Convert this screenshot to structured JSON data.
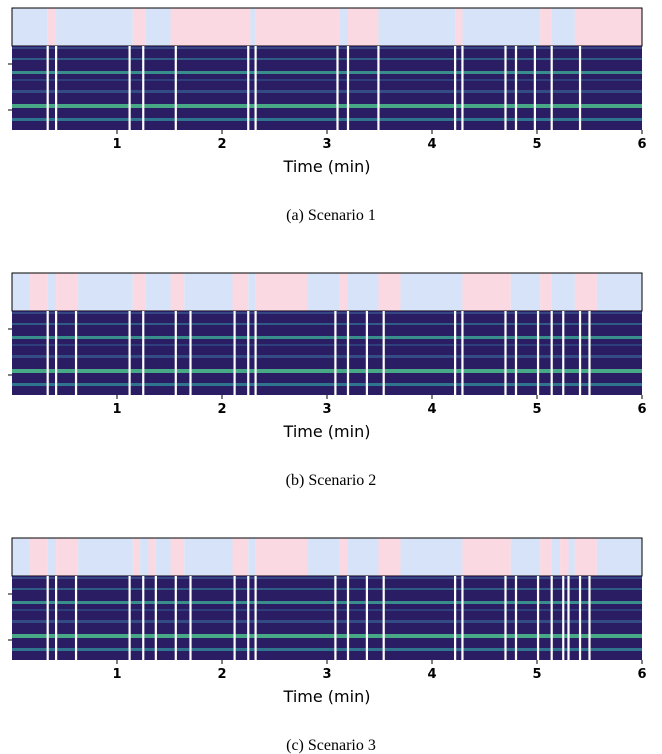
{
  "chart_data": [
    {
      "type": "segments",
      "caption": "(a) Scenario 1",
      "xlabel": "Time (min)",
      "xlim": [
        0,
        6
      ],
      "xticks": [
        1,
        2,
        3,
        4,
        5,
        6
      ],
      "segment_edges": [
        0,
        0.34,
        0.42,
        1.15,
        1.27,
        1.51,
        2.27,
        2.32,
        3.12,
        3.2,
        3.49,
        4.22,
        4.29,
        5.03,
        5.14,
        5.36,
        6
      ],
      "segment_colors": [
        "#d7e3f8",
        "#fbd9e2",
        "#d7e3f8",
        "#fbd9e2",
        "#d7e3f8",
        "#fbd9e2",
        "#d7e3f8",
        "#fbd9e2",
        "#d7e3f8",
        "#fbd9e2",
        "#d7e3f8",
        "#fbd9e2",
        "#d7e3f8",
        "#fbd9e2",
        "#d7e3f8",
        "#fbd9e2"
      ],
      "events": [
        0.34,
        0.42,
        1.12,
        1.25,
        1.56,
        2.25,
        2.32,
        3.1,
        3.2,
        3.49,
        4.22,
        4.29,
        4.7,
        4.8,
        4.98,
        5.14,
        5.41
      ],
      "event_color": "#ffffff"
    },
    {
      "type": "segments",
      "caption": "(b) Scenario 2",
      "xlabel": "Time (min)",
      "xlim": [
        0,
        6
      ],
      "xticks": [
        1,
        2,
        3,
        4,
        5,
        6
      ],
      "segment_edges": [
        0,
        0.17,
        0.34,
        0.42,
        0.63,
        1.15,
        1.27,
        1.51,
        1.64,
        2.1,
        2.25,
        2.32,
        2.81,
        3.12,
        3.2,
        3.49,
        3.7,
        4.29,
        4.75,
        5.03,
        5.14,
        5.36,
        5.57,
        6
      ],
      "segment_colors": [
        "#d7e3f8",
        "#fbd9e2",
        "#d7e3f8",
        "#fbd9e2",
        "#d7e3f8",
        "#fbd9e2",
        "#d7e3f8",
        "#fbd9e2",
        "#d7e3f8",
        "#fbd9e2",
        "#d7e3f8",
        "#fbd9e2",
        "#d7e3f8",
        "#fbd9e2",
        "#d7e3f8",
        "#fbd9e2",
        "#d7e3f8",
        "#fbd9e2",
        "#d7e3f8",
        "#fbd9e2",
        "#d7e3f8",
        "#fbd9e2",
        "#d7e3f8"
      ],
      "events": [
        0.34,
        0.42,
        0.61,
        1.12,
        1.25,
        1.56,
        1.7,
        2.12,
        2.25,
        2.32,
        3.08,
        3.2,
        3.38,
        3.54,
        4.22,
        4.29,
        4.7,
        4.8,
        5.01,
        5.14,
        5.25,
        5.41,
        5.5
      ],
      "event_color": "#ffffff"
    },
    {
      "type": "segments",
      "caption": "(c) Scenario 3",
      "xlabel": "Time (min)",
      "xlim": [
        0,
        6
      ],
      "xticks": [
        1,
        2,
        3,
        4,
        5,
        6
      ],
      "segment_edges": [
        0,
        0.17,
        0.34,
        0.42,
        0.63,
        1.15,
        1.22,
        1.3,
        1.37,
        1.51,
        1.64,
        2.1,
        2.25,
        2.32,
        2.81,
        3.12,
        3.2,
        3.49,
        3.7,
        4.29,
        4.75,
        5.03,
        5.14,
        5.22,
        5.3,
        5.36,
        5.57,
        6
      ],
      "segment_colors": [
        "#d7e3f8",
        "#fbd9e2",
        "#d7e3f8",
        "#fbd9e2",
        "#d7e3f8",
        "#fbd9e2",
        "#d7e3f8",
        "#fbd9e2",
        "#d7e3f8",
        "#fbd9e2",
        "#d7e3f8",
        "#fbd9e2",
        "#d7e3f8",
        "#fbd9e2",
        "#d7e3f8",
        "#fbd9e2",
        "#d7e3f8",
        "#fbd9e2",
        "#d7e3f8",
        "#fbd9e2",
        "#d7e3f8",
        "#fbd9e2",
        "#d7e3f8",
        "#fbd9e2",
        "#d7e3f8",
        "#fbd9e2",
        "#d7e3f8"
      ],
      "events": [
        0.34,
        0.42,
        0.61,
        1.12,
        1.25,
        1.37,
        1.56,
        1.7,
        2.12,
        2.25,
        2.32,
        3.08,
        3.2,
        3.38,
        3.54,
        4.22,
        4.29,
        4.7,
        4.8,
        5.01,
        5.14,
        5.25,
        5.3,
        5.41,
        5.5
      ],
      "event_color": "#ffffff"
    }
  ]
}
